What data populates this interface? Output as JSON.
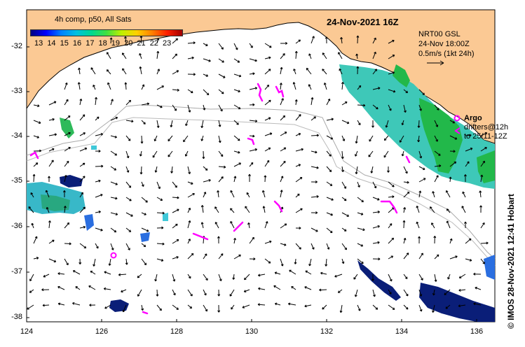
{
  "title": "24-Nov-2021 16Z",
  "colorbar": {
    "title": "4h comp, p50, All Sats",
    "ticks": [
      "13",
      "14",
      "15",
      "16",
      "17",
      "18",
      "19",
      "20",
      "21",
      "22",
      "23"
    ]
  },
  "info": {
    "product": "NRT00 GSL",
    "time": "24-Nov 18:00Z",
    "scale": "0.5m/s (1kt 24h)"
  },
  "argo_legend": {
    "label": "Argo",
    "drifters": "drifters@12h",
    "range": "to 25/11-12Z"
  },
  "axes": {
    "lat_ticks": [
      "-32",
      "-33",
      "-34",
      "-35",
      "-36",
      "-37",
      "-38"
    ],
    "lon_ticks": [
      "124",
      "126",
      "128",
      "130",
      "132",
      "134",
      "136"
    ]
  },
  "credit": "© IMOS 28-Nov-2021 12:41 Hobart",
  "colors": {
    "land": "#fbc994",
    "ocean": "#ffffff",
    "argo": "#ff00ff",
    "cold": "#0a1e78",
    "warm": "#30c8c8"
  }
}
